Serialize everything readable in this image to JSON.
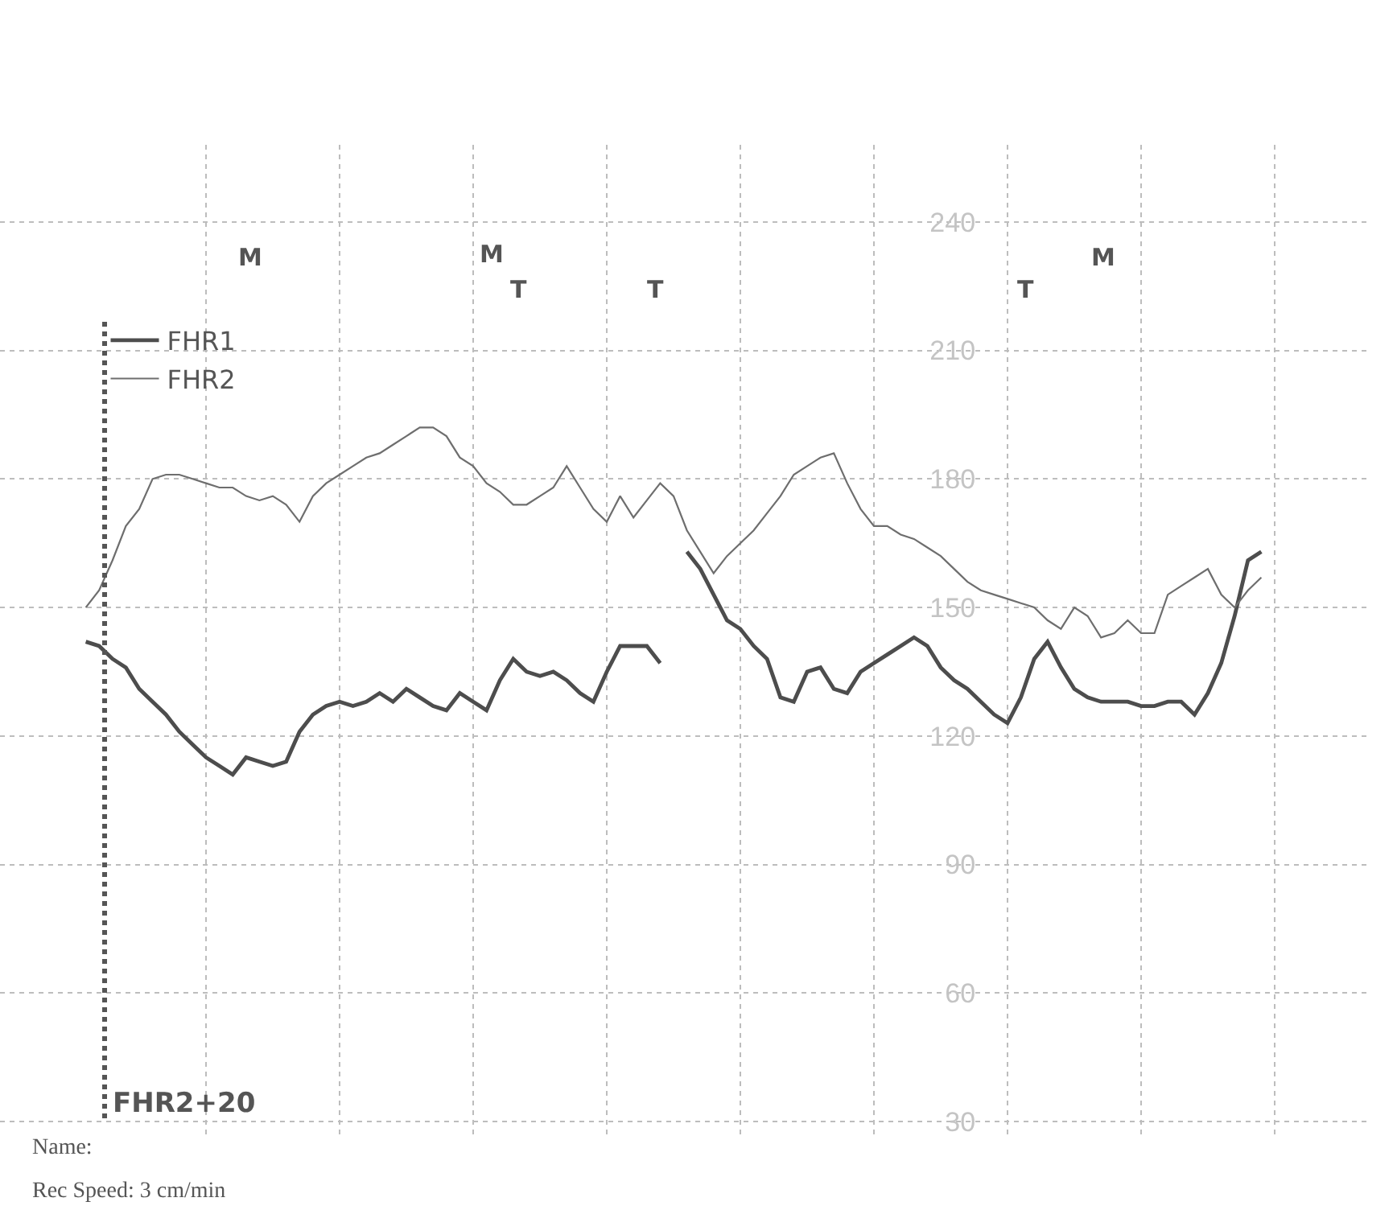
{
  "chart_data": {
    "type": "line",
    "categories": [
      null,
      null,
      null,
      null,
      null,
      null,
      null,
      null,
      null,
      null,
      null,
      null,
      null,
      null,
      null,
      null,
      null,
      null,
      null,
      null,
      null,
      null,
      null,
      null,
      null,
      null,
      null,
      null,
      null,
      null,
      null,
      null,
      null,
      null,
      null,
      null,
      null,
      null,
      null,
      null,
      null,
      null,
      null,
      null,
      null,
      null,
      null,
      null,
      null,
      null,
      null,
      null,
      null,
      null,
      null,
      null,
      null,
      null,
      null,
      null,
      null,
      null,
      null,
      null,
      null,
      null,
      null,
      null,
      null,
      null,
      null,
      null,
      null,
      null,
      null,
      null,
      null,
      null,
      null,
      null,
      null,
      null,
      null,
      null,
      null,
      null,
      null,
      null,
      null
    ],
    "series": [
      {
        "name": "FHR1",
        "color": "#4d4d4d",
        "values": [
          142,
          141,
          138,
          136,
          131,
          128,
          125,
          121,
          118,
          115,
          113,
          111,
          115,
          114,
          113,
          114,
          121,
          125,
          127,
          128,
          127,
          128,
          130,
          128,
          131,
          129,
          127,
          126,
          130,
          128,
          126,
          133,
          138,
          135,
          134,
          135,
          133,
          130,
          128,
          135,
          141,
          141,
          141,
          137,
          null,
          163,
          159,
          153,
          147,
          145,
          141,
          138,
          129,
          128,
          135,
          136,
          131,
          130,
          135,
          137,
          139,
          141,
          143,
          141,
          136,
          133,
          131,
          128,
          125,
          123,
          129,
          138,
          142,
          136,
          131,
          129,
          128,
          128,
          128,
          127,
          127,
          128,
          128,
          125,
          130,
          137,
          148,
          161,
          163
        ]
      },
      {
        "name": "FHR2",
        "color": "#6e6e6e",
        "values": [
          150,
          154,
          161,
          169,
          173,
          180,
          181,
          181,
          180,
          179,
          178,
          178,
          176,
          175,
          176,
          174,
          170,
          176,
          179,
          181,
          183,
          185,
          186,
          188,
          190,
          192,
          192,
          190,
          185,
          183,
          179,
          177,
          174,
          174,
          176,
          178,
          183,
          178,
          173,
          170,
          176,
          171,
          175,
          179,
          176,
          168,
          163,
          158,
          162,
          165,
          168,
          172,
          176,
          181,
          183,
          185,
          186,
          179,
          173,
          169,
          169,
          167,
          166,
          164,
          162,
          159,
          156,
          154,
          153,
          152,
          151,
          150,
          147,
          145,
          150,
          148,
          143,
          144,
          147,
          144,
          144,
          153,
          155,
          157,
          159,
          153,
          150,
          154,
          157
        ]
      }
    ],
    "ylim": [
      27,
      258
    ],
    "yticks": [
      30,
      60,
      90,
      120,
      150,
      180,
      210,
      240
    ],
    "tick_labels": "y",
    "grid": true,
    "legend": "top left",
    "marker": "none",
    "line_style": "solid",
    "annotations": [
      "M",
      "M",
      "T",
      "T",
      "T",
      "M",
      "FHR2+20",
      "Name:",
      "Rec Speed: 3 cm/min"
    ]
  }
}
